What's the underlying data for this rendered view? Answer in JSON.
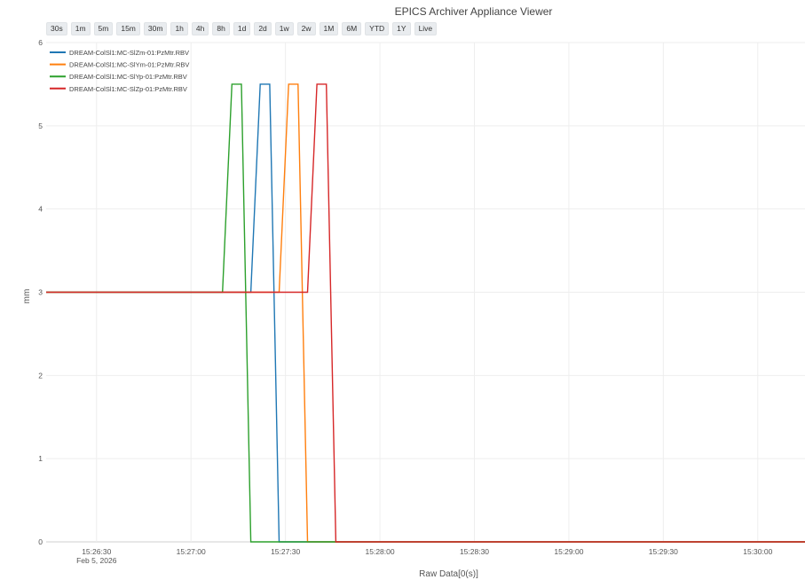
{
  "title": "EPICS Archiver Appliance Viewer",
  "range_buttons": [
    "30s",
    "1m",
    "5m",
    "15m",
    "30m",
    "1h",
    "4h",
    "8h",
    "1d",
    "2d",
    "1w",
    "2w",
    "1M",
    "6M",
    "YTD",
    "1Y",
    "Live"
  ],
  "chart_data": {
    "type": "line",
    "title": "EPICS Archiver Appliance Viewer",
    "xlabel": "Raw Data[0(s)]",
    "ylabel": "mm",
    "ylim": [
      0,
      6
    ],
    "xlim": [
      "2026-02-05 15:26:14",
      "2026-02-05 15:30:15"
    ],
    "yticks": [
      0,
      1,
      2,
      3,
      4,
      5,
      6
    ],
    "xticks": [
      {
        "t": "2026-02-05 15:26:30",
        "label": "15:26:30",
        "sublabel": "Feb 5, 2026"
      },
      {
        "t": "2026-02-05 15:27:00",
        "label": "15:27:00",
        "sublabel": ""
      },
      {
        "t": "2026-02-05 15:27:30",
        "label": "15:27:30",
        "sublabel": ""
      },
      {
        "t": "2026-02-05 15:28:00",
        "label": "15:28:00",
        "sublabel": ""
      },
      {
        "t": "2026-02-05 15:28:30",
        "label": "15:28:30",
        "sublabel": ""
      },
      {
        "t": "2026-02-05 15:29:00",
        "label": "15:29:00",
        "sublabel": ""
      },
      {
        "t": "2026-02-05 15:29:30",
        "label": "15:29:30",
        "sublabel": ""
      },
      {
        "t": "2026-02-05 15:30:00",
        "label": "15:30:00",
        "sublabel": ""
      }
    ],
    "grid": true,
    "legend_position": "top-left",
    "series": [
      {
        "name": "DREAM-ColSl1:MC-SlZm-01:PzMtr.RBV",
        "color": "#1f77b4",
        "x": [
          "2026-02-05 15:26:14",
          "2026-02-05 15:27:19",
          "2026-02-05 15:27:22",
          "2026-02-05 15:27:25",
          "2026-02-05 15:27:28",
          "2026-02-05 15:30:15"
        ],
        "y": [
          3,
          3,
          5.5,
          5.5,
          0,
          0
        ]
      },
      {
        "name": "DREAM-ColSl1:MC-SlYm-01:PzMtr.RBV",
        "color": "#ff7f0e",
        "x": [
          "2026-02-05 15:26:14",
          "2026-02-05 15:27:28",
          "2026-02-05 15:27:31",
          "2026-02-05 15:27:34",
          "2026-02-05 15:27:37",
          "2026-02-05 15:30:15"
        ],
        "y": [
          3,
          3,
          5.5,
          5.5,
          0,
          0
        ]
      },
      {
        "name": "DREAM-ColSl1:MC-SlYp-01:PzMtr.RBV",
        "color": "#2ca02c",
        "x": [
          "2026-02-05 15:26:14",
          "2026-02-05 15:27:10",
          "2026-02-05 15:27:13",
          "2026-02-05 15:27:16",
          "2026-02-05 15:27:19",
          "2026-02-05 15:30:15"
        ],
        "y": [
          3,
          3,
          5.5,
          5.5,
          0,
          0
        ]
      },
      {
        "name": "DREAM-ColSl1:MC-SlZp-01:PzMtr.RBV",
        "color": "#d62728",
        "x": [
          "2026-02-05 15:26:14",
          "2026-02-05 15:27:37",
          "2026-02-05 15:27:40",
          "2026-02-05 15:27:43",
          "2026-02-05 15:27:46",
          "2026-02-05 15:30:15"
        ],
        "y": [
          3,
          3,
          5.5,
          5.5,
          0,
          0
        ]
      }
    ]
  }
}
